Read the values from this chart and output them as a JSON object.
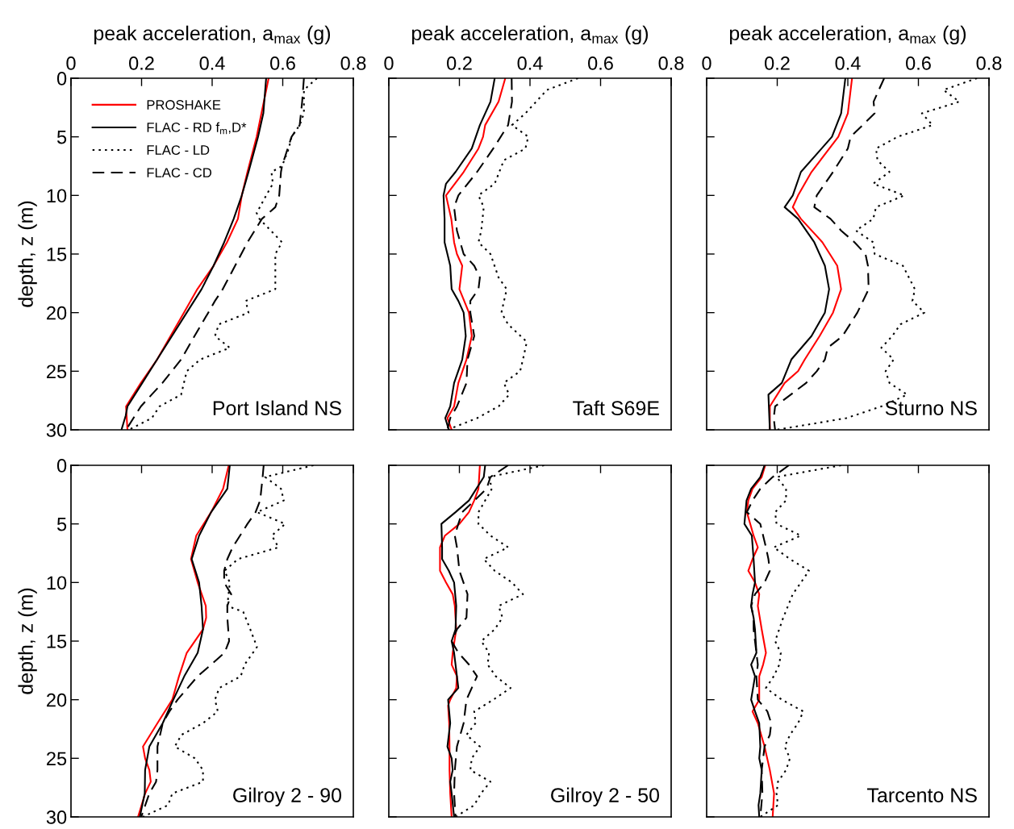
{
  "chart_data": [
    {
      "type": "line",
      "xlabel": "peak acceleration, a$_{max}$ (g)",
      "ylabel": "depth, z (m)",
      "xlim": [
        0,
        0.8
      ],
      "xticks": [
        0,
        0.2,
        0.4,
        0.6,
        0.8
      ],
      "ylim": [
        30,
        0
      ],
      "yticks": [
        0,
        5,
        10,
        15,
        20,
        25,
        30
      ],
      "legend": "top left",
      "grid": false,
      "annotations": [
        "Port Island NS"
      ],
      "series": [
        {
          "name": "PROSHAKE",
          "color": "#ff0000",
          "line_style": "solid",
          "x": [
            0.56,
            0.526,
            0.5,
            0.484,
            0.473,
            0.442,
            0.404,
            0.358,
            0.32,
            0.282,
            0.244,
            0.198,
            0.156,
            0.16
          ],
          "values": [
            0,
            5,
            8,
            10,
            12,
            14,
            16,
            18,
            20,
            22,
            24,
            26,
            28,
            30
          ]
        },
        {
          "name": "FLAC - RD f$_{m}$,D*",
          "color": "#000000",
          "line_style": "solid",
          "x": [
            0.553,
            0.545,
            0.53,
            0.503,
            0.484,
            0.461,
            0.434,
            0.404,
            0.37,
            0.328,
            0.286,
            0.244,
            0.202,
            0.16,
            0.155,
            0.143
          ],
          "values": [
            0,
            3,
            5,
            8,
            10,
            12,
            14,
            16,
            18,
            20,
            22,
            24,
            26,
            28,
            28.8,
            30
          ]
        },
        {
          "name": "FLAC - LD",
          "color": "#000000",
          "line_style": "dotted",
          "x": [
            0.697,
            0.66,
            0.66,
            0.648,
            0.625,
            0.617,
            0.598,
            0.568,
            0.572,
            0.553,
            0.526,
            0.534,
            0.598,
            0.579,
            0.579,
            0.495,
            0.503,
            0.419,
            0.408,
            0.45,
            0.366,
            0.328,
            0.32,
            0.312,
            0.251,
            0.229,
            0.164
          ],
          "values": [
            0,
            1,
            3,
            4,
            5,
            6,
            7.5,
            8,
            9,
            10,
            11.5,
            12,
            14,
            15,
            18,
            19,
            20,
            21,
            22,
            23,
            24,
            25,
            26,
            27,
            28,
            29,
            30
          ]
        },
        {
          "name": "FLAC - CD",
          "color": "#000000",
          "line_style": "dashed",
          "x": [
            0.66,
            0.655,
            0.648,
            0.625,
            0.614,
            0.598,
            0.595,
            0.59,
            0.579,
            0.541,
            0.5,
            0.465,
            0.43,
            0.408,
            0.389,
            0.35,
            0.312,
            0.259,
            0.198,
            0.156
          ],
          "values": [
            0,
            2,
            4,
            5,
            6,
            7.5,
            8,
            10,
            11,
            12,
            14,
            16,
            18,
            19,
            20,
            22,
            24,
            26,
            28,
            30
          ]
        }
      ]
    },
    {
      "type": "line",
      "xlabel": "peak acceleration, a$_{max}$ (g)",
      "xlim": [
        0,
        0.8
      ],
      "xticks": [
        0,
        0.2,
        0.4,
        0.6,
        0.8
      ],
      "ylim": [
        30,
        0
      ],
      "yticks": [
        0,
        5,
        10,
        15,
        20,
        25,
        30
      ],
      "tick_labels": "x",
      "grid": false,
      "annotations": [
        "Taft S69E"
      ],
      "series": [
        {
          "color": "#ff0000",
          "line_style": "solid",
          "x": [
            0.33,
            0.311,
            0.273,
            0.267,
            0.254,
            0.212,
            0.162,
            0.177,
            0.185,
            0.193,
            0.208,
            0.2,
            0.227,
            0.235,
            0.22,
            0.197,
            0.185,
            0.166,
            0.178
          ],
          "values": [
            0,
            2,
            4,
            5,
            6,
            8,
            10,
            12,
            14,
            15,
            16,
            18,
            20,
            22,
            24,
            26,
            28,
            29,
            30
          ]
        },
        {
          "color": "#000000",
          "line_style": "solid",
          "x": [
            0.3,
            0.288,
            0.258,
            0.235,
            0.189,
            0.162,
            0.155,
            0.158,
            0.158,
            0.174,
            0.178,
            0.197,
            0.212,
            0.218,
            0.208,
            0.185,
            0.174,
            0.16,
            0.17
          ],
          "values": [
            0,
            2,
            4,
            6,
            8,
            9,
            10,
            12,
            14,
            16,
            18,
            19,
            20,
            22,
            24,
            26,
            28,
            29,
            30
          ]
        },
        {
          "color": "#000000",
          "line_style": "dotted",
          "x": [
            0.536,
            0.448,
            0.387,
            0.349,
            0.395,
            0.387,
            0.326,
            0.3,
            0.254,
            0.269,
            0.262,
            0.254,
            0.288,
            0.311,
            0.334,
            0.319,
            0.338,
            0.391,
            0.38,
            0.372,
            0.326,
            0.341,
            0.311,
            0.25,
            0.166
          ],
          "values": [
            0,
            1,
            3,
            4,
            5,
            6,
            7,
            9,
            10,
            11,
            13,
            14,
            15,
            17,
            18,
            20,
            21,
            22.5,
            24,
            25,
            26,
            27,
            28,
            29,
            30
          ]
        },
        {
          "color": "#000000",
          "line_style": "dashed",
          "x": [
            0.348,
            0.349,
            0.338,
            0.296,
            0.25,
            0.197,
            0.185,
            0.193,
            0.212,
            0.242,
            0.258,
            0.254,
            0.231,
            0.231,
            0.242,
            0.223,
            0.22,
            0.193,
            0.174,
            0.166
          ],
          "values": [
            0,
            2,
            4,
            6,
            8,
            10,
            11,
            13,
            15,
            16,
            17,
            18,
            19,
            20,
            22,
            24,
            26,
            28,
            29,
            30
          ]
        }
      ]
    },
    {
      "type": "line",
      "xlabel": "peak acceleration, a$_{max}$ (g)",
      "xlim": [
        0,
        0.8
      ],
      "xticks": [
        0,
        0.2,
        0.4,
        0.6,
        0.8
      ],
      "ylim": [
        30,
        0
      ],
      "yticks": [
        0,
        5,
        10,
        15,
        20,
        25,
        30
      ],
      "tick_labels": "x",
      "grid": false,
      "annotations": [
        "Sturno NS"
      ],
      "series": [
        {
          "color": "#ff0000",
          "line_style": "solid",
          "x": [
            0.412,
            0.4,
            0.373,
            0.297,
            0.259,
            0.244,
            0.267,
            0.328,
            0.37,
            0.381,
            0.358,
            0.32,
            0.278,
            0.259,
            0.221,
            0.179,
            0.179
          ],
          "values": [
            0,
            3,
            5,
            8,
            10,
            11,
            12,
            14,
            16,
            18,
            20,
            22,
            24,
            25,
            26,
            28,
            30
          ]
        },
        {
          "color": "#000000",
          "line_style": "solid",
          "x": [
            0.393,
            0.381,
            0.355,
            0.267,
            0.244,
            0.221,
            0.259,
            0.305,
            0.335,
            0.347,
            0.335,
            0.297,
            0.24,
            0.213,
            0.175,
            0.179
          ],
          "values": [
            0,
            3,
            5,
            8,
            10,
            11,
            12,
            14,
            16,
            18,
            20,
            22,
            24,
            26,
            27,
            30
          ]
        },
        {
          "color": "#000000",
          "line_style": "dotted",
          "x": [
            0.766,
            0.671,
            0.716,
            0.61,
            0.64,
            0.541,
            0.48,
            0.484,
            0.518,
            0.472,
            0.56,
            0.48,
            0.472,
            0.423,
            0.472,
            0.476,
            0.556,
            0.59,
            0.583,
            0.617,
            0.549,
            0.526,
            0.495,
            0.53,
            0.507,
            0.518,
            0.568,
            0.495,
            0.396,
            0.198
          ],
          "values": [
            0,
            1,
            2,
            3,
            4,
            5,
            6,
            7,
            8,
            9,
            10,
            11,
            12,
            13,
            14,
            15,
            16,
            18,
            19,
            20,
            21,
            22,
            23,
            24,
            25,
            26,
            27,
            28,
            29,
            30
          ]
        },
        {
          "color": "#000000",
          "line_style": "dashed",
          "x": [
            0.503,
            0.473,
            0.476,
            0.442,
            0.408,
            0.4,
            0.358,
            0.312,
            0.305,
            0.351,
            0.381,
            0.419,
            0.45,
            0.457,
            0.459,
            0.427,
            0.385,
            0.343,
            0.335,
            0.312,
            0.282,
            0.194,
            0.19,
            0.194
          ],
          "values": [
            0,
            2,
            3,
            4,
            5,
            6,
            8,
            10,
            11,
            12,
            13,
            14,
            15,
            16,
            18,
            20,
            22,
            23,
            24,
            25,
            26,
            28,
            29,
            30
          ]
        }
      ]
    },
    {
      "type": "line",
      "ylabel": "depth, z (m)",
      "xlim": [
        0,
        0.8
      ],
      "xticks": [
        0,
        0.2,
        0.4,
        0.6,
        0.8
      ],
      "ylim": [
        30,
        0
      ],
      "yticks": [
        0,
        5,
        10,
        15,
        20,
        25,
        30
      ],
      "tick_labels": "y",
      "grid": false,
      "annotations": [
        "Gilroy 2 - 90"
      ],
      "series": [
        {
          "color": "#ff0000",
          "line_style": "solid",
          "x": [
            0.447,
            0.431,
            0.397,
            0.355,
            0.34,
            0.359,
            0.382,
            0.383,
            0.374,
            0.328,
            0.317,
            0.306,
            0.287,
            0.245,
            0.204,
            0.21,
            0.222,
            0.226,
            0.21,
            0.19
          ],
          "values": [
            0,
            2,
            4,
            6,
            8,
            10,
            12,
            13,
            14,
            16,
            17,
            18,
            20,
            22,
            24,
            25,
            26,
            27,
            28,
            30
          ]
        },
        {
          "color": "#000000",
          "line_style": "solid",
          "x": [
            0.45,
            0.443,
            0.397,
            0.363,
            0.342,
            0.363,
            0.37,
            0.374,
            0.359,
            0.321,
            0.29,
            0.26,
            0.222,
            0.21,
            0.209,
            0.195
          ],
          "values": [
            0,
            2,
            4,
            6,
            8,
            10,
            12,
            14,
            16,
            18,
            20,
            22,
            24,
            26,
            28,
            30
          ]
        },
        {
          "color": "#000000",
          "line_style": "dotted",
          "x": [
            0.687,
            0.55,
            0.595,
            0.603,
            0.527,
            0.607,
            0.569,
            0.588,
            0.473,
            0.435,
            0.45,
            0.443,
            0.488,
            0.508,
            0.527,
            0.492,
            0.481,
            0.42,
            0.408,
            0.416,
            0.374,
            0.313,
            0.294,
            0.351,
            0.374,
            0.374,
            0.287,
            0.275,
            0.203
          ],
          "values": [
            0,
            1,
            2,
            3,
            4,
            5,
            6,
            7,
            8,
            9,
            10,
            12,
            12.5,
            14,
            15.5,
            17,
            18,
            19,
            20,
            21,
            22,
            23,
            24,
            25,
            26,
            27,
            28,
            29,
            30
          ]
        },
        {
          "color": "#000000",
          "line_style": "dashed",
          "x": [
            0.546,
            0.543,
            0.536,
            0.523,
            0.5,
            0.458,
            0.443,
            0.434,
            0.434,
            0.454,
            0.443,
            0.443,
            0.448,
            0.435,
            0.359,
            0.302,
            0.279,
            0.26,
            0.245,
            0.245,
            0.241,
            0.222,
            0.199
          ],
          "values": [
            0,
            1,
            3,
            4,
            5,
            7,
            8,
            9,
            10,
            11,
            12,
            13,
            15,
            16,
            18,
            20,
            21,
            22,
            24,
            26,
            27,
            28,
            30
          ]
        }
      ]
    },
    {
      "type": "line",
      "xlim": [
        0,
        0.8
      ],
      "xticks": [
        0,
        0.2,
        0.4,
        0.6,
        0.8
      ],
      "ylim": [
        30,
        0
      ],
      "yticks": [
        0,
        5,
        10,
        15,
        20,
        25,
        30
      ],
      "tick_labels": false,
      "grid": false,
      "annotations": [
        "Gilroy 2 - 50"
      ],
      "series": [
        {
          "color": "#ff0000",
          "line_style": "solid",
          "x": [
            0.258,
            0.254,
            0.242,
            0.227,
            0.2,
            0.159,
            0.145,
            0.145,
            0.162,
            0.181,
            0.187,
            0.191,
            0.181,
            0.178,
            0.193,
            0.191,
            0.174,
            0.168,
            0.171,
            0.172,
            0.172,
            0.174,
            0.178
          ],
          "values": [
            0,
            2,
            3,
            4,
            5,
            6,
            7,
            9,
            10,
            11,
            12,
            14,
            16,
            17,
            18,
            19,
            20,
            20.5,
            22,
            24,
            26,
            28,
            30
          ]
        },
        {
          "color": "#000000",
          "line_style": "solid",
          "x": [
            0.273,
            0.269,
            0.227,
            0.189,
            0.149,
            0.151,
            0.151,
            0.17,
            0.185,
            0.191,
            0.189,
            0.178,
            0.185,
            0.193,
            0.197,
            0.168,
            0.174,
            0.166,
            0.178,
            0.181,
            0.174,
            0.178,
            0.185
          ],
          "values": [
            0,
            1,
            3,
            4,
            5,
            7,
            8,
            9,
            10,
            12,
            14,
            15,
            16,
            18,
            19,
            20,
            22,
            24,
            25,
            26,
            27,
            28,
            30
          ]
        },
        {
          "color": "#000000",
          "line_style": "dotted",
          "x": [
            0.44,
            0.284,
            0.292,
            0.273,
            0.254,
            0.254,
            0.288,
            0.338,
            0.269,
            0.3,
            0.349,
            0.38,
            0.311,
            0.322,
            0.3,
            0.262,
            0.284,
            0.28,
            0.303,
            0.345,
            0.296,
            0.242,
            0.246,
            0.22,
            0.258,
            0.235,
            0.231,
            0.288,
            0.261,
            0.242,
            0.189
          ],
          "values": [
            0,
            1,
            2,
            3,
            4,
            5,
            6,
            7,
            8,
            9,
            10,
            11,
            12,
            13,
            14,
            15,
            16,
            17,
            18,
            19,
            20,
            21,
            22,
            23,
            24,
            25,
            26,
            27,
            28,
            29,
            30
          ]
        },
        {
          "color": "#000000",
          "line_style": "dashed",
          "x": [
            0.338,
            0.288,
            0.277,
            0.208,
            0.197,
            0.187,
            0.193,
            0.2,
            0.223,
            0.22,
            0.193,
            0.178,
            0.197,
            0.227,
            0.25,
            0.22,
            0.212,
            0.193,
            0.187,
            0.185,
            0.189
          ],
          "values": [
            0,
            1,
            2,
            4,
            5,
            6,
            7,
            9,
            11,
            13,
            14,
            15,
            16,
            17,
            18,
            20,
            22,
            24,
            26,
            28,
            30
          ]
        }
      ]
    },
    {
      "type": "line",
      "xlim": [
        0,
        0.8
      ],
      "xticks": [
        0,
        0.2,
        0.4,
        0.6,
        0.8
      ],
      "ylim": [
        30,
        0
      ],
      "yticks": [
        0,
        5,
        10,
        15,
        20,
        25,
        30
      ],
      "tick_labels": false,
      "grid": false,
      "annotations": [
        "Tarcento NS"
      ],
      "series": [
        {
          "color": "#ff0000",
          "line_style": "solid",
          "x": [
            0.166,
            0.156,
            0.13,
            0.118,
            0.114,
            0.133,
            0.145,
            0.13,
            0.118,
            0.137,
            0.149,
            0.145,
            0.156,
            0.168,
            0.16,
            0.149,
            0.149,
            0.13,
            0.145,
            0.164,
            0.179,
            0.191,
            0.187
          ],
          "values": [
            0,
            1,
            2,
            3,
            4,
            6,
            7,
            8,
            9,
            10,
            11,
            12,
            14,
            16,
            17,
            18,
            20,
            21,
            22,
            24,
            26,
            28,
            30
          ]
        },
        {
          "color": "#000000",
          "line_style": "solid",
          "x": [
            0.164,
            0.152,
            0.126,
            0.113,
            0.107,
            0.128,
            0.133,
            0.137,
            0.13,
            0.126,
            0.133,
            0.137,
            0.141,
            0.126,
            0.137,
            0.126,
            0.137,
            0.149,
            0.152,
            0.149,
            0.156,
            0.152,
            0.147,
            0.149
          ],
          "values": [
            0,
            1,
            2,
            3,
            5,
            6,
            8,
            10,
            11,
            12,
            13,
            14,
            16,
            17,
            18,
            20,
            21,
            22,
            24,
            25,
            26,
            28,
            29,
            30
          ]
        },
        {
          "color": "#000000",
          "line_style": "dotted",
          "x": [
            0.381,
            0.198,
            0.225,
            0.225,
            0.194,
            0.198,
            0.267,
            0.19,
            0.236,
            0.29,
            0.267,
            0.244,
            0.217,
            0.194,
            0.21,
            0.206,
            0.19,
            0.168,
            0.213,
            0.274,
            0.259,
            0.236,
            0.221,
            0.236,
            0.225,
            0.202,
            0.198,
            0.202,
            0.152
          ],
          "values": [
            0,
            1,
            2,
            3,
            4,
            5,
            6,
            7,
            8,
            9,
            10,
            11,
            13,
            15,
            16,
            17,
            18,
            19,
            20,
            21,
            22,
            23,
            24,
            25,
            26,
            27,
            28,
            29,
            30
          ]
        },
        {
          "color": "#000000",
          "line_style": "dashed",
          "x": [
            0.233,
            0.187,
            0.152,
            0.13,
            0.114,
            0.152,
            0.16,
            0.168,
            0.175,
            0.179,
            0.164,
            0.137,
            0.126,
            0.133,
            0.133,
            0.141,
            0.145,
            0.141,
            0.145,
            0.172,
            0.183,
            0.179,
            0.164,
            0.156,
            0.158,
            0.152
          ],
          "values": [
            0,
            1,
            2,
            3,
            4,
            5,
            6,
            7,
            8,
            9,
            10,
            11,
            12,
            13,
            14,
            16,
            17,
            18,
            20,
            21,
            22,
            23,
            24,
            26,
            28,
            30
          ]
        }
      ]
    }
  ]
}
